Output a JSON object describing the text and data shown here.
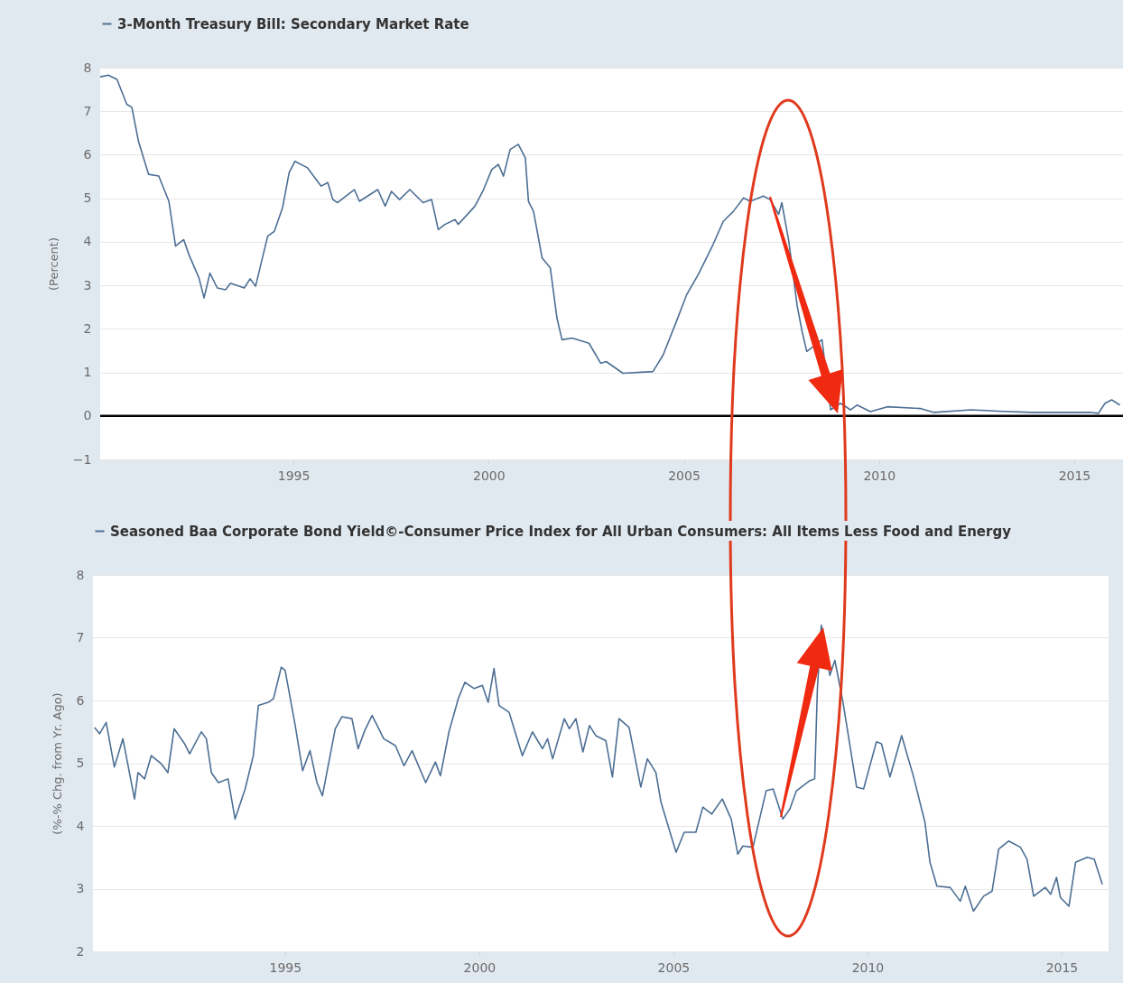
{
  "chart_data": [
    {
      "type": "line",
      "ylabel": "(Percent)",
      "legend": "top left",
      "grid": "y",
      "xlim": [
        1990.05,
        2016.25
      ],
      "xticks": [
        1995,
        2000,
        2005,
        2010,
        2015
      ],
      "ylim": [
        -1,
        8
      ],
      "yticks": [
        -1,
        0,
        1,
        2,
        3,
        4,
        5,
        6,
        7,
        8
      ],
      "ref_lines": [
        {
          "axis": "y",
          "value": 0,
          "color": "#000000"
        }
      ],
      "series": [
        {
          "name": "3-Month Treasury Bill: Secondary Market Rate",
          "color": "#4c6f94",
          "x": [
            1990.05,
            1990.26,
            1990.48,
            1990.73,
            1990.86,
            1991.03,
            1991.29,
            1991.55,
            1991.81,
            1991.98,
            1992.19,
            1992.32,
            1992.58,
            1992.71,
            1992.86,
            1993.05,
            1993.26,
            1993.39,
            1993.74,
            1993.89,
            1994.03,
            1994.34,
            1994.51,
            1994.72,
            1994.89,
            1995.04,
            1995.36,
            1995.71,
            1995.88,
            1996.01,
            1996.13,
            1996.56,
            1996.69,
            1997.16,
            1997.35,
            1997.51,
            1997.72,
            1997.98,
            1998.32,
            1998.54,
            1998.71,
            1998.88,
            1999.14,
            1999.22,
            1999.65,
            1999.87,
            2000.08,
            2000.25,
            2000.38,
            2000.55,
            2000.76,
            2000.94,
            2001.02,
            2001.15,
            2001.37,
            2001.58,
            2001.75,
            2001.88,
            2002.14,
            2002.57,
            2002.87,
            2003.01,
            2003.44,
            2004.21,
            2004.47,
            2004.81,
            2005.07,
            2005.37,
            2005.75,
            2006.01,
            2006.27,
            2006.53,
            2006.7,
            2007.04,
            2007.21,
            2007.43,
            2007.51,
            2007.69,
            2007.9,
            2008.03,
            2008.15,
            2008.54,
            2008.76,
            2009.01,
            2009.27,
            2009.44,
            2009.78,
            2010.21,
            2011.06,
            2011.41,
            2012.36,
            2013.04,
            2013.9,
            2015.44,
            2015.62,
            2015.79,
            2015.96,
            2016.17
          ],
          "values": [
            7.79,
            7.83,
            7.73,
            7.16,
            7.09,
            6.31,
            5.55,
            5.51,
            4.93,
            3.9,
            4.05,
            3.71,
            3.17,
            2.71,
            3.28,
            2.94,
            2.9,
            3.05,
            2.94,
            3.15,
            2.98,
            4.13,
            4.24,
            4.78,
            5.59,
            5.85,
            5.7,
            5.28,
            5.36,
            4.97,
            4.9,
            5.2,
            4.93,
            5.2,
            4.82,
            5.16,
            4.97,
            5.2,
            4.9,
            4.97,
            4.28,
            4.4,
            4.51,
            4.4,
            4.82,
            5.2,
            5.66,
            5.78,
            5.51,
            6.12,
            6.24,
            5.93,
            4.93,
            4.7,
            3.63,
            3.4,
            2.25,
            1.75,
            1.79,
            1.67,
            1.21,
            1.25,
            0.98,
            1.02,
            1.4,
            2.17,
            2.78,
            3.25,
            3.94,
            4.47,
            4.7,
            5.01,
            4.93,
            5.05,
            4.97,
            4.63,
            4.9,
            4.01,
            2.55,
            1.94,
            1.48,
            1.75,
            0.14,
            0.29,
            0.14,
            0.25,
            0.1,
            0.21,
            0.17,
            0.08,
            0.14,
            0.11,
            0.08,
            0.08,
            0.06,
            0.29,
            0.37,
            0.25
          ]
        }
      ]
    },
    {
      "type": "line",
      "ylabel": "(%-% Chg. from Yr. Ago)",
      "legend": "top left",
      "grid": "y",
      "xlim": [
        1990.05,
        2016.21
      ],
      "xticks": [
        1995,
        2000,
        2005,
        2010,
        2015
      ],
      "ylim": [
        2,
        8
      ],
      "yticks": [
        2,
        3,
        4,
        5,
        6,
        7,
        8
      ],
      "series": [
        {
          "name": "Seasoned Baa Corporate Bond Yield©-Consumer Price Index for All Urban Consumers: All Items Less Food and Energy",
          "color": "#4c6f94",
          "x": [
            1990.09,
            1990.22,
            1990.39,
            1990.6,
            1990.82,
            1991.12,
            1991.21,
            1991.38,
            1991.55,
            1991.81,
            1991.98,
            1992.14,
            1992.41,
            1992.54,
            1992.84,
            1992.97,
            1993.1,
            1993.28,
            1993.53,
            1993.71,
            1993.97,
            1994.18,
            1994.31,
            1994.57,
            1994.7,
            1994.9,
            1995.0,
            1995.26,
            1995.45,
            1995.64,
            1995.82,
            1995.96,
            1996.29,
            1996.46,
            1996.72,
            1996.88,
            1997.05,
            1997.24,
            1997.54,
            1997.84,
            1998.06,
            1998.27,
            1998.62,
            1998.87,
            1999.0,
            1999.22,
            1999.46,
            1999.63,
            1999.87,
            2000.08,
            2000.23,
            2000.38,
            2000.51,
            2000.77,
            2001.11,
            2001.37,
            2001.63,
            2001.76,
            2001.89,
            2002.19,
            2002.32,
            2002.49,
            2002.67,
            2002.84,
            2003.0,
            2003.26,
            2003.43,
            2003.6,
            2003.86,
            2004.16,
            2004.33,
            2004.55,
            2004.68,
            2005.07,
            2005.28,
            2005.58,
            2005.76,
            2005.99,
            2006.26,
            2006.49,
            2006.66,
            2006.79,
            2007.05,
            2007.39,
            2007.57,
            2007.82,
            2008.0,
            2008.17,
            2008.51,
            2008.64,
            2008.71,
            2008.81,
            2009.03,
            2009.16,
            2009.37,
            2009.72,
            2009.9,
            2010.23,
            2010.36,
            2010.58,
            2010.88,
            2011.18,
            2011.48,
            2011.61,
            2011.79,
            2012.13,
            2012.39,
            2012.52,
            2012.73,
            2012.99,
            2013.21,
            2013.38,
            2013.64,
            2013.94,
            2014.11,
            2014.28,
            2014.58,
            2014.72,
            2014.87,
            2014.97,
            2015.19,
            2015.36,
            2015.66,
            2015.84,
            2016.05
          ],
          "values": [
            5.57,
            5.47,
            5.65,
            4.94,
            5.39,
            4.43,
            4.85,
            4.75,
            5.12,
            4.99,
            4.85,
            5.55,
            5.31,
            5.15,
            5.5,
            5.39,
            4.85,
            4.69,
            4.75,
            4.11,
            4.59,
            5.12,
            5.92,
            5.97,
            6.03,
            6.53,
            6.48,
            5.6,
            4.88,
            5.2,
            4.69,
            4.48,
            5.55,
            5.74,
            5.71,
            5.23,
            5.52,
            5.76,
            5.39,
            5.28,
            4.96,
            5.2,
            4.69,
            5.02,
            4.8,
            5.5,
            6.03,
            6.29,
            6.19,
            6.24,
            5.97,
            6.51,
            5.92,
            5.81,
            5.12,
            5.5,
            5.23,
            5.39,
            5.07,
            5.71,
            5.55,
            5.71,
            5.18,
            5.6,
            5.44,
            5.36,
            4.78,
            5.71,
            5.57,
            4.62,
            5.07,
            4.85,
            4.38,
            3.58,
            3.9,
            3.9,
            4.3,
            4.19,
            4.43,
            4.11,
            3.55,
            3.68,
            3.66,
            4.56,
            4.59,
            4.11,
            4.27,
            4.56,
            4.72,
            4.75,
            6.19,
            7.2,
            6.4,
            6.64,
            5.97,
            4.62,
            4.59,
            5.34,
            5.31,
            4.78,
            5.44,
            4.8,
            4.06,
            3.42,
            3.04,
            3.02,
            2.8,
            3.04,
            2.64,
            2.88,
            2.96,
            3.63,
            3.76,
            3.66,
            3.47,
            2.88,
            3.02,
            2.91,
            3.18,
            2.86,
            2.72,
            3.42,
            3.5,
            3.47,
            3.07
          ]
        }
      ]
    }
  ]
}
